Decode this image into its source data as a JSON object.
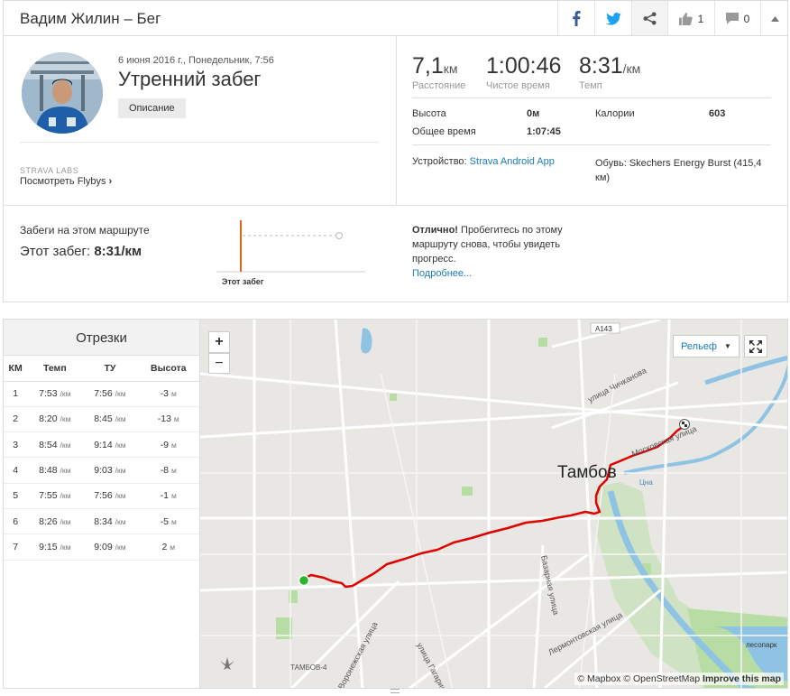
{
  "header": {
    "title": "Вадим Жилин – Бег",
    "kudos_count": "1",
    "comments_count": "0"
  },
  "activity": {
    "date": "6 июня 2016 г., Понедельник, 7:56",
    "name": "Утренний забег",
    "description_button": "Описание",
    "labs_label": "STRAVA LABS",
    "flyby_link": "Посмотреть Flybys"
  },
  "stats": {
    "distance": {
      "value": "7,1",
      "unit": "км",
      "label": "Расстояние"
    },
    "moving_time": {
      "value": "1:00:46",
      "label": "Чистое время"
    },
    "pace": {
      "value": "8:31",
      "unit": "/км",
      "label": "Темп"
    },
    "elevation_label": "Высота",
    "elevation_value": "0м",
    "elapsed_label": "Общее время",
    "elapsed_value": "1:07:45",
    "calories_label": "Калории",
    "calories_value": "603",
    "device_label": "Устройство:",
    "device_value": "Strava Android App",
    "shoes_label": "Обувь:",
    "shoes_value": "Skechers Energy Burst (415,4 км)"
  },
  "segment": {
    "title": "Забеги на этом маршруте",
    "this_run_label": "Этот забег:",
    "this_run_value": "8:31/км",
    "chart_label": "Этот забег",
    "great_bold": "Отлично!",
    "great_text": "Пробегитесь по этому маршруту снова, чтобы увидеть прогресс.",
    "more_link": "Подробнее..."
  },
  "splits": {
    "title": "Отрезки",
    "headers": [
      "КМ",
      "Темп",
      "ТУ",
      "Высота"
    ],
    "unit": "/км",
    "elev_unit": "м",
    "rows": [
      {
        "km": "1",
        "pace": "7:53",
        "gap": "7:56",
        "elev": "-3"
      },
      {
        "km": "2",
        "pace": "8:20",
        "gap": "8:45",
        "elev": "-13"
      },
      {
        "km": "3",
        "pace": "8:54",
        "gap": "9:14",
        "elev": "-9"
      },
      {
        "km": "4",
        "pace": "8:48",
        "gap": "9:03",
        "elev": "-8"
      },
      {
        "km": "5",
        "pace": "7:55",
        "gap": "7:56",
        "elev": "-1"
      },
      {
        "km": "6",
        "pace": "8:26",
        "gap": "8:34",
        "elev": "-5"
      },
      {
        "km": "7",
        "pace": "9:15",
        "gap": "9:09",
        "elev": "2"
      }
    ]
  },
  "map": {
    "zoom_in": "+",
    "zoom_out": "−",
    "layer_select": "Рельеф",
    "city_label": "Тамбов",
    "road_badge": "A143",
    "streets": [
      "улица Чичканова",
      "Московская улица",
      "Базарная улица",
      "Лермонтовская улица",
      "улица Гагарина",
      "Воронежская улица"
    ],
    "river_label": "Цна",
    "park_label": "лесопарк",
    "district_label": "ТАМБОВ-4",
    "attribution_1": "© Mapbox © OpenStreetMap",
    "attribution_2": "Improve this map"
  },
  "colors": {
    "route": "#e00000",
    "start": "#2cb52c",
    "accent_orange": "#e0651b",
    "link": "#1b7cb8",
    "water": "#8ec3e3",
    "park": "#b7dca4"
  }
}
